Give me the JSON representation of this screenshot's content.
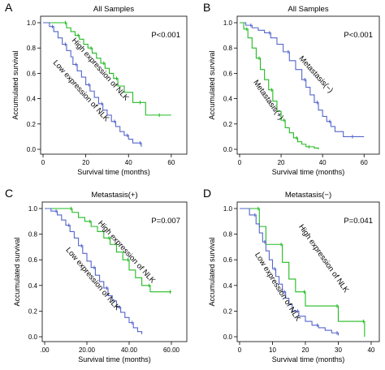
{
  "chart_data": [
    {
      "panel_letter": "A",
      "type": "line",
      "title": "All Samples",
      "annotation": "P<0.001",
      "xlabel": "Survival time (months)",
      "ylabel": "Accumulated survival",
      "xlim": [
        0,
        65
      ],
      "ylim": [
        0,
        1.0
      ],
      "xticks": [
        "0",
        "20",
        "40",
        "60"
      ],
      "xtick_values": [
        0,
        20,
        40,
        60
      ],
      "yticks": [
        "0.0",
        "0.2",
        "0.4",
        "0.6",
        "0.8",
        "1.0"
      ],
      "ytick_values": [
        0,
        0.2,
        0.4,
        0.6,
        0.8,
        1.0
      ],
      "series": [
        {
          "label": "High expression of NLK",
          "label_angle": 48,
          "label_anchor": [
            26,
            0.62
          ],
          "color": "#22bb22",
          "x": [
            0,
            8,
            11,
            13,
            15,
            17,
            19,
            21,
            23,
            25,
            27,
            29,
            31,
            33,
            35,
            38,
            42,
            46,
            48,
            52,
            55,
            60
          ],
          "y": [
            1.0,
            1.0,
            0.96,
            0.93,
            0.9,
            0.87,
            0.83,
            0.8,
            0.76,
            0.72,
            0.68,
            0.64,
            0.6,
            0.56,
            0.5,
            0.45,
            0.37,
            0.37,
            0.27,
            0.27,
            0.27,
            0.27
          ]
        },
        {
          "label": "Low expression of NLK",
          "label_angle": 48,
          "label_anchor": [
            17,
            0.45
          ],
          "color": "#5566cc",
          "x": [
            0,
            3,
            5,
            7,
            9,
            11,
            13,
            14,
            16,
            18,
            20,
            22,
            24,
            26,
            28,
            30,
            32,
            34,
            36,
            38,
            40,
            42,
            44,
            46
          ],
          "y": [
            1.0,
            0.97,
            0.93,
            0.88,
            0.83,
            0.78,
            0.73,
            0.67,
            0.62,
            0.57,
            0.51,
            0.46,
            0.41,
            0.36,
            0.31,
            0.27,
            0.22,
            0.18,
            0.14,
            0.11,
            0.08,
            0.05,
            0.05,
            0.02
          ]
        }
      ]
    },
    {
      "panel_letter": "B",
      "type": "line",
      "title": "All Samples",
      "annotation": "P<0.001",
      "xlabel": "Survival time (months)",
      "ylabel": "Accumulated survival",
      "xlim": [
        0,
        65
      ],
      "ylim": [
        0,
        1.0
      ],
      "xticks": [
        "0",
        "20",
        "40",
        "60"
      ],
      "xtick_values": [
        0,
        20,
        40,
        60
      ],
      "yticks": [
        "0.0",
        "0.2",
        "0.4",
        "0.6",
        "0.8",
        "1.0"
      ],
      "ytick_values": [
        0,
        0.2,
        0.4,
        0.6,
        0.8,
        1.0
      ],
      "series": [
        {
          "label": "Metastasis(−)",
          "label_angle": 48,
          "label_anchor": [
            36,
            0.58
          ],
          "color": "#5566cc",
          "x": [
            0,
            3,
            6,
            9,
            12,
            15,
            18,
            21,
            24,
            27,
            30,
            32,
            34,
            36,
            38,
            40,
            42,
            44,
            46,
            50,
            55,
            60
          ],
          "y": [
            1.0,
            0.98,
            0.96,
            0.94,
            0.92,
            0.88,
            0.83,
            0.77,
            0.7,
            0.63,
            0.55,
            0.49,
            0.43,
            0.37,
            0.31,
            0.26,
            0.22,
            0.18,
            0.14,
            0.1,
            0.1,
            0.1
          ]
        },
        {
          "label": "Metastasis(+)",
          "label_angle": 55,
          "label_anchor": [
            13,
            0.38
          ],
          "color": "#22bb22",
          "x": [
            0,
            2,
            4,
            6,
            8,
            10,
            12,
            14,
            16,
            18,
            20,
            22,
            24,
            26,
            28,
            30,
            32,
            34,
            36,
            38
          ],
          "y": [
            1.0,
            0.95,
            0.88,
            0.8,
            0.72,
            0.63,
            0.55,
            0.47,
            0.38,
            0.3,
            0.23,
            0.17,
            0.13,
            0.09,
            0.06,
            0.04,
            0.02,
            0.02,
            0.01,
            0.0
          ]
        }
      ]
    },
    {
      "panel_letter": "C",
      "type": "line",
      "title": "Metastasis(+)",
      "annotation": "P=0.007",
      "xlabel": "Survival time (months)",
      "ylabel": "Accumulated survival",
      "xlim": [
        0,
        65
      ],
      "ylim": [
        0,
        1.0
      ],
      "xticks": [
        ".00",
        "20.00",
        "40.00",
        "60.00"
      ],
      "xtick_values": [
        0,
        20,
        40,
        60
      ],
      "yticks": [
        "0.0",
        "0.2",
        "0.4",
        "0.6",
        "0.8",
        "1.0"
      ],
      "ytick_values": [
        0,
        0.2,
        0.4,
        0.6,
        0.8,
        1.0
      ],
      "series": [
        {
          "label": "High expression of NLK",
          "label_angle": 48,
          "label_anchor": [
            38,
            0.65
          ],
          "color": "#22bb22",
          "x": [
            0,
            10,
            13,
            16,
            19,
            22,
            25,
            28,
            31,
            34,
            37,
            40,
            43,
            46,
            50,
            52,
            55,
            60
          ],
          "y": [
            1.0,
            1.0,
            0.97,
            0.93,
            0.9,
            0.86,
            0.82,
            0.77,
            0.72,
            0.66,
            0.6,
            0.52,
            0.46,
            0.4,
            0.35,
            0.35,
            0.35,
            0.35
          ]
        },
        {
          "label": "Low expression of NLK",
          "label_angle": 50,
          "label_anchor": [
            22,
            0.44
          ],
          "color": "#5566cc",
          "x": [
            0,
            3,
            6,
            8,
            10,
            12,
            14,
            16,
            18,
            20,
            22,
            24,
            26,
            28,
            30,
            32,
            34,
            36,
            38,
            40,
            42,
            44,
            46
          ],
          "y": [
            1.0,
            0.98,
            0.95,
            0.91,
            0.87,
            0.82,
            0.77,
            0.71,
            0.65,
            0.59,
            0.54,
            0.48,
            0.43,
            0.38,
            0.32,
            0.28,
            0.23,
            0.19,
            0.15,
            0.11,
            0.07,
            0.04,
            0.02
          ]
        }
      ]
    },
    {
      "panel_letter": "D",
      "type": "line",
      "title": "Metastasis(−)",
      "annotation": "P=0.041",
      "xlabel": "Survival time (months)",
      "ylabel": "Accumulated survival",
      "xlim": [
        0,
        41
      ],
      "ylim": [
        0,
        1.0
      ],
      "xticks": [
        "0",
        "10",
        "20",
        "30",
        "40"
      ],
      "xtick_values": [
        0,
        10,
        20,
        30,
        40
      ],
      "yticks": [
        "0.0",
        "0.2",
        "0.4",
        "0.6",
        "0.8",
        "1.0"
      ],
      "ytick_values": [
        0,
        0.2,
        0.4,
        0.6,
        0.8,
        1.0
      ],
      "series": [
        {
          "label": "High expression of NLK",
          "label_angle": 55,
          "label_anchor": [
            25,
            0.6
          ],
          "color": "#22bb22",
          "x": [
            0,
            4,
            6,
            8,
            10,
            13,
            15,
            17,
            20,
            24,
            26,
            30,
            33,
            35,
            38
          ],
          "y": [
            1.0,
            1.0,
            0.86,
            0.72,
            0.72,
            0.58,
            0.45,
            0.35,
            0.24,
            0.24,
            0.24,
            0.12,
            0.12,
            0.12,
            0.0
          ]
        },
        {
          "label": "Low expression of NLK",
          "label_angle": 58,
          "label_anchor": [
            11,
            0.38
          ],
          "color": "#5566cc",
          "x": [
            0,
            3,
            5,
            6,
            7,
            8,
            9,
            10,
            11,
            12,
            13,
            14,
            15,
            16,
            18,
            20,
            22,
            24,
            26,
            28,
            30
          ],
          "y": [
            1.0,
            0.95,
            0.88,
            0.81,
            0.74,
            0.67,
            0.6,
            0.53,
            0.47,
            0.41,
            0.35,
            0.3,
            0.25,
            0.2,
            0.16,
            0.12,
            0.09,
            0.07,
            0.05,
            0.03,
            0.01
          ]
        }
      ]
    }
  ]
}
